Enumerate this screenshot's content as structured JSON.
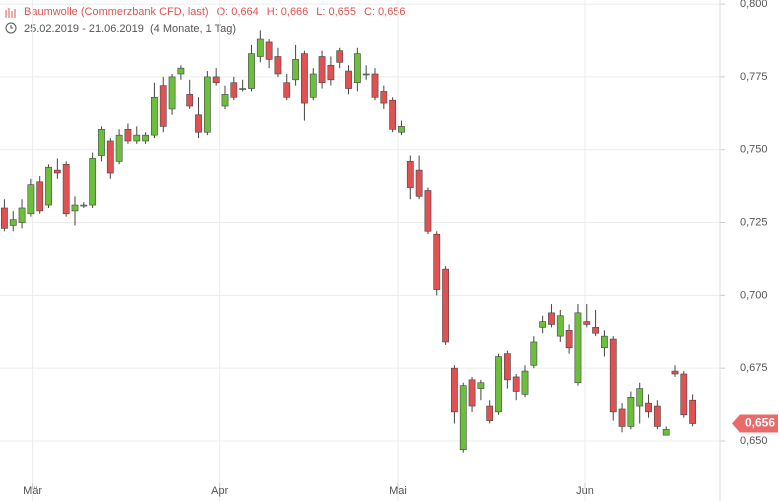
{
  "chart_data": {
    "type": "candlestick",
    "title": "Baumwolle (Commerzbank CFD, last)",
    "stats": [
      {
        "key": "O:",
        "value": 0.664,
        "label": "0,664"
      },
      {
        "key": "H:",
        "value": 0.666,
        "label": "0,666"
      },
      {
        "key": "L:",
        "value": 0.655,
        "label": "0,655"
      },
      {
        "key": "C:",
        "value": 0.656,
        "label": "0,656"
      }
    ],
    "date_range": "25.02.2019 - 21.06.2019",
    "period": "(4 Monate, 1 Tag)",
    "open": [
      0.73,
      0.724,
      0.725,
      0.728,
      0.739,
      0.731,
      0.743,
      0.745,
      0.729,
      0.731,
      0.731,
      0.748,
      0.753,
      0.746,
      0.757,
      0.753,
      0.753,
      0.755,
      0.772,
      0.764,
      0.776,
      0.769,
      0.762,
      0.756,
      0.775,
      0.765,
      0.773,
      0.771,
      0.771,
      0.782,
      0.787,
      0.782,
      0.773,
      0.774,
      0.783,
      0.768,
      0.782,
      0.779,
      0.784,
      0.777,
      0.773,
      0.776,
      0.776,
      0.77,
      0.767,
      0.756,
      0.746,
      0.743,
      0.736,
      0.721,
      0.709,
      0.675,
      0.647,
      0.671,
      0.668,
      0.662,
      0.66,
      0.68,
      0.672,
      0.666,
      0.676,
      0.689,
      0.694,
      0.686,
      0.688,
      0.67,
      0.691,
      0.689,
      0.682,
      0.685,
      0.661,
      0.655,
      0.662,
      0.663,
      0.662,
      0.652,
      0.674,
      0.673,
      0.664
    ],
    "high": [
      0.733,
      0.729,
      0.733,
      0.74,
      0.741,
      0.745,
      0.747,
      0.746,
      0.734,
      0.732,
      0.749,
      0.758,
      0.754,
      0.757,
      0.759,
      0.758,
      0.756,
      0.773,
      0.775,
      0.776,
      0.779,
      0.774,
      0.768,
      0.777,
      0.778,
      0.772,
      0.775,
      0.774,
      0.786,
      0.791,
      0.788,
      0.785,
      0.776,
      0.786,
      0.784,
      0.778,
      0.784,
      0.782,
      0.785,
      0.779,
      0.785,
      0.779,
      0.778,
      0.772,
      0.768,
      0.76,
      0.748,
      0.748,
      0.737,
      0.722,
      0.71,
      0.676,
      0.67,
      0.672,
      0.671,
      0.664,
      0.68,
      0.681,
      0.673,
      0.676,
      0.686,
      0.693,
      0.697,
      0.695,
      0.69,
      0.697,
      0.697,
      0.695,
      0.688,
      0.686,
      0.663,
      0.667,
      0.67,
      0.666,
      0.664,
      0.655,
      0.676,
      0.674,
      0.666
    ],
    "low": [
      0.722,
      0.722,
      0.723,
      0.727,
      0.728,
      0.73,
      0.74,
      0.727,
      0.724,
      0.73,
      0.73,
      0.746,
      0.74,
      0.745,
      0.752,
      0.752,
      0.752,
      0.754,
      0.756,
      0.762,
      0.774,
      0.764,
      0.754,
      0.755,
      0.772,
      0.764,
      0.767,
      0.77,
      0.77,
      0.78,
      0.778,
      0.775,
      0.767,
      0.772,
      0.76,
      0.767,
      0.771,
      0.772,
      0.778,
      0.769,
      0.77,
      0.774,
      0.767,
      0.764,
      0.756,
      0.755,
      0.733,
      0.733,
      0.721,
      0.7,
      0.683,
      0.656,
      0.646,
      0.66,
      0.664,
      0.656,
      0.659,
      0.668,
      0.664,
      0.665,
      0.675,
      0.687,
      0.689,
      0.684,
      0.68,
      0.669,
      0.689,
      0.686,
      0.679,
      0.657,
      0.653,
      0.654,
      0.656,
      0.658,
      0.654,
      0.652,
      0.672,
      0.658,
      0.655
    ],
    "close": [
      0.723,
      0.726,
      0.73,
      0.738,
      0.729,
      0.744,
      0.742,
      0.728,
      0.731,
      0.731,
      0.747,
      0.757,
      0.742,
      0.755,
      0.753,
      0.755,
      0.755,
      0.768,
      0.758,
      0.775,
      0.778,
      0.765,
      0.756,
      0.775,
      0.773,
      0.769,
      0.768,
      0.771,
      0.783,
      0.788,
      0.781,
      0.776,
      0.768,
      0.781,
      0.766,
      0.776,
      0.773,
      0.774,
      0.78,
      0.771,
      0.783,
      0.776,
      0.768,
      0.766,
      0.757,
      0.758,
      0.737,
      0.734,
      0.722,
      0.702,
      0.684,
      0.66,
      0.669,
      0.662,
      0.67,
      0.657,
      0.679,
      0.671,
      0.667,
      0.674,
      0.684,
      0.691,
      0.69,
      0.693,
      0.682,
      0.694,
      0.69,
      0.687,
      0.686,
      0.66,
      0.655,
      0.665,
      0.668,
      0.66,
      0.655,
      0.654,
      0.673,
      0.659,
      0.656
    ],
    "up_color": "#6cbf3a",
    "down_color": "#e05252",
    "xlim": [
      -0.5,
      81.1
    ],
    "xticks": [
      {
        "value": 3.2,
        "label": "Mär"
      },
      {
        "value": 24.4,
        "label": "Apr"
      },
      {
        "value": 44.6,
        "label": "Mai"
      },
      {
        "value": 65.8,
        "label": "Jun"
      }
    ],
    "ylim": [
      0.6294,
      0.8014
    ],
    "yticks": [
      {
        "value": 0.65,
        "label": "0,650"
      },
      {
        "value": 0.675,
        "label": "0,675"
      },
      {
        "value": 0.7,
        "label": "0,700"
      },
      {
        "value": 0.725,
        "label": "0,725"
      },
      {
        "value": 0.75,
        "label": "0,750"
      },
      {
        "value": 0.775,
        "label": "0,775"
      },
      {
        "value": 0.8,
        "label": "0,800"
      }
    ],
    "last_label": {
      "value": 0.656,
      "label": "0,656"
    },
    "grid": true
  }
}
